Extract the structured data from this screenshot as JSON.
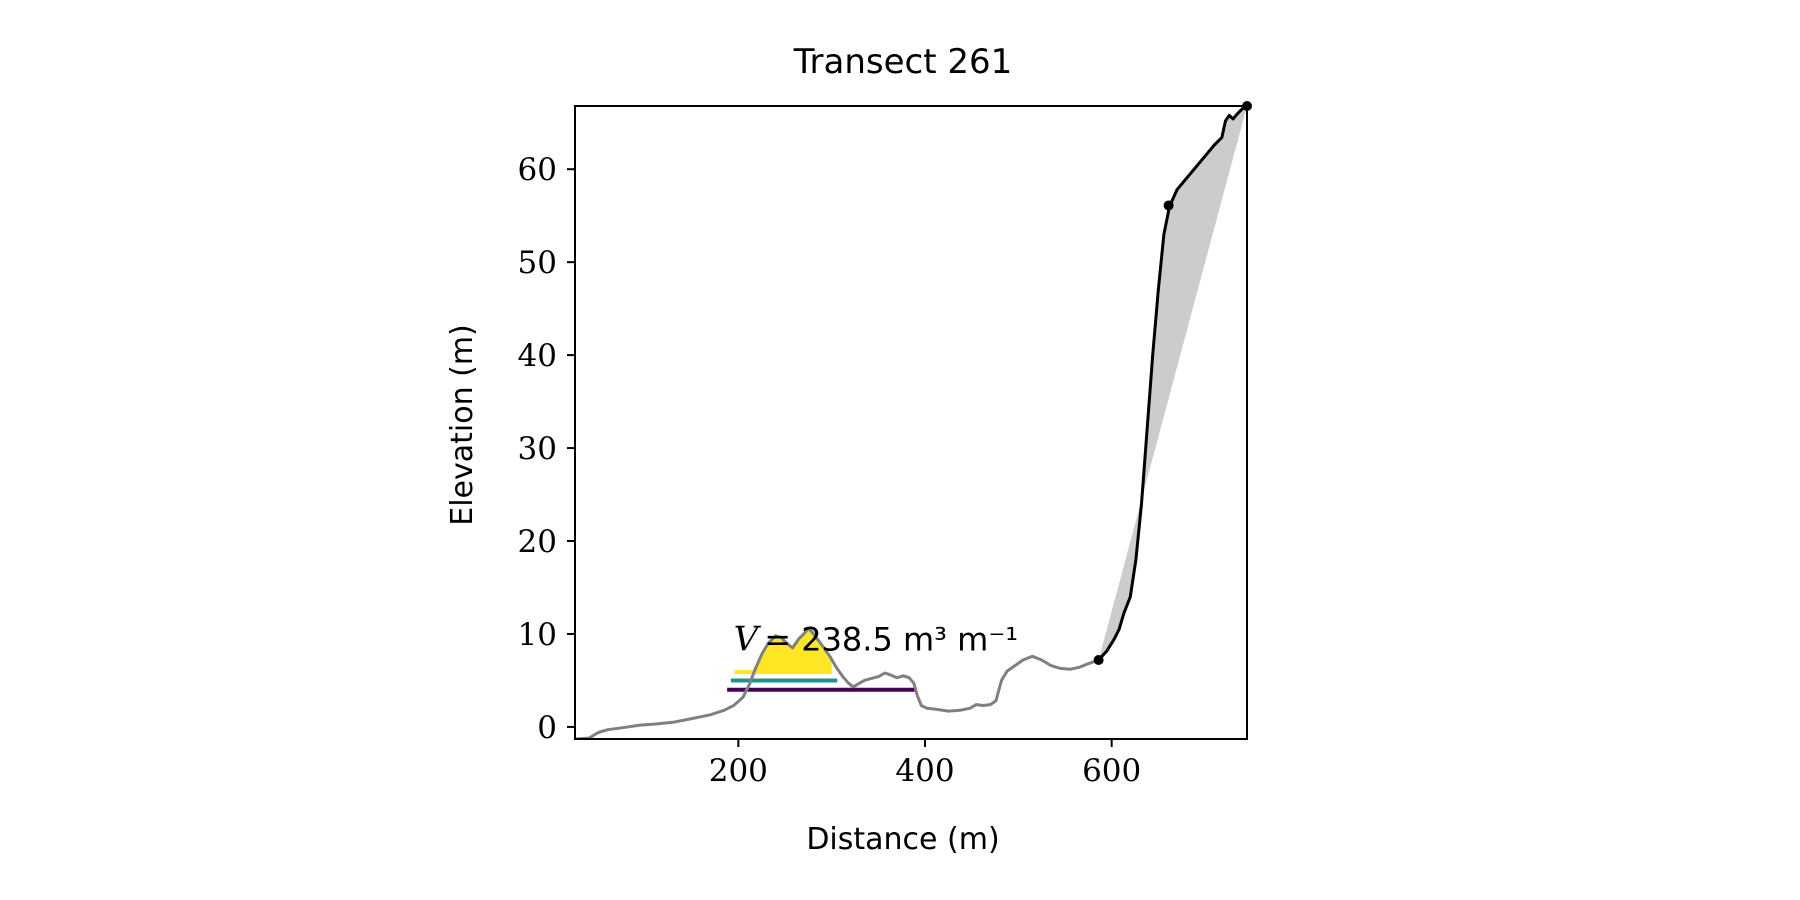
{
  "chart_data": {
    "type": "line",
    "title": "Transect 261",
    "xlabel": "Distance (m)",
    "ylabel": "Elevation (m)",
    "xlim": [
      25,
      745
    ],
    "ylim": [
      -1.3,
      66.8
    ],
    "xticks": [
      200,
      400,
      600
    ],
    "yticks": [
      0,
      10,
      20,
      30,
      40,
      50,
      60
    ],
    "grid": false,
    "legend": "none",
    "annotation": {
      "prefix": "V",
      "text": "= 238.5 m³ m⁻¹",
      "x": 195,
      "y": 8.2
    },
    "colors": {
      "profile": "#808080",
      "cliff": "#000000",
      "cliff_fill": "#cccccc",
      "dune_top": "#fde725",
      "dune_mid": "#21918c",
      "dune_base": "#440154"
    },
    "series": [
      {
        "role": "profile",
        "points": [
          [
            25,
            -1.3
          ],
          [
            40,
            -1.2
          ],
          [
            50,
            -0.6
          ],
          [
            60,
            -0.3
          ],
          [
            75,
            -0.1
          ],
          [
            95,
            0.2
          ],
          [
            110,
            0.3
          ],
          [
            130,
            0.5
          ],
          [
            150,
            0.9
          ],
          [
            170,
            1.3
          ],
          [
            185,
            1.8
          ],
          [
            195,
            2.3
          ],
          [
            205,
            3.2
          ],
          [
            212,
            4.6
          ],
          [
            218,
            6.2
          ],
          [
            225,
            7.8
          ],
          [
            232,
            9.0
          ],
          [
            240,
            9.8
          ],
          [
            246,
            9.6
          ],
          [
            252,
            9.0
          ],
          [
            258,
            8.5
          ],
          [
            265,
            9.5
          ],
          [
            270,
            10.0
          ],
          [
            275,
            10.6
          ],
          [
            279,
            10.2
          ],
          [
            285,
            9.4
          ],
          [
            291,
            8.6
          ],
          [
            298,
            7.6
          ],
          [
            305,
            6.4
          ],
          [
            312,
            5.4
          ],
          [
            318,
            4.7
          ],
          [
            323,
            4.3
          ],
          [
            328,
            4.6
          ],
          [
            335,
            5.0
          ],
          [
            342,
            5.2
          ],
          [
            350,
            5.4
          ],
          [
            357,
            5.8
          ],
          [
            363,
            5.6
          ],
          [
            370,
            5.3
          ],
          [
            377,
            5.5
          ],
          [
            383,
            5.3
          ],
          [
            388,
            4.7
          ],
          [
            392,
            3.3
          ],
          [
            396,
            2.3
          ],
          [
            402,
            2.0
          ],
          [
            412,
            1.9
          ],
          [
            425,
            1.7
          ],
          [
            438,
            1.8
          ],
          [
            448,
            2.0
          ],
          [
            455,
            2.4
          ],
          [
            462,
            2.3
          ],
          [
            470,
            2.4
          ],
          [
            476,
            2.8
          ],
          [
            482,
            5.0
          ],
          [
            488,
            6.0
          ],
          [
            495,
            6.5
          ],
          [
            505,
            7.2
          ],
          [
            515,
            7.6
          ],
          [
            525,
            7.2
          ],
          [
            535,
            6.6
          ],
          [
            545,
            6.3
          ],
          [
            555,
            6.2
          ],
          [
            565,
            6.4
          ],
          [
            575,
            6.8
          ],
          [
            586,
            7.2
          ]
        ]
      },
      {
        "role": "cliff",
        "points": [
          [
            586,
            7.2
          ],
          [
            595,
            8.2
          ],
          [
            603,
            9.5
          ],
          [
            608,
            10.5
          ],
          [
            613,
            12.2
          ],
          [
            620,
            14.0
          ],
          [
            626,
            18.0
          ],
          [
            632,
            24.0
          ],
          [
            638,
            32.0
          ],
          [
            644,
            40.0
          ],
          [
            650,
            47.0
          ],
          [
            656,
            53.0
          ],
          [
            662,
            56.0
          ],
          [
            670,
            57.8
          ],
          [
            680,
            59.0
          ],
          [
            690,
            60.2
          ],
          [
            700,
            61.4
          ],
          [
            710,
            62.6
          ],
          [
            718,
            63.4
          ],
          [
            722,
            65.2
          ],
          [
            726,
            65.8
          ],
          [
            730,
            65.4
          ],
          [
            735,
            66.0
          ],
          [
            740,
            66.5
          ],
          [
            745,
            66.8
          ]
        ]
      }
    ],
    "cliff_fill_polygon": [
      [
        586,
        7.2
      ],
      [
        745,
        66.8
      ],
      [
        740,
        66.5
      ],
      [
        735,
        66.0
      ],
      [
        730,
        65.4
      ],
      [
        726,
        65.8
      ],
      [
        722,
        65.2
      ],
      [
        718,
        63.4
      ],
      [
        710,
        62.6
      ],
      [
        700,
        61.4
      ],
      [
        690,
        60.2
      ],
      [
        680,
        59.0
      ],
      [
        670,
        57.8
      ],
      [
        662,
        56.0
      ],
      [
        656,
        53.0
      ],
      [
        650,
        47.0
      ],
      [
        644,
        40.0
      ],
      [
        638,
        32.0
      ],
      [
        632,
        24.0
      ],
      [
        626,
        18.0
      ],
      [
        620,
        14.0
      ],
      [
        613,
        12.2
      ],
      [
        608,
        10.5
      ],
      [
        603,
        9.5
      ],
      [
        595,
        8.2
      ]
    ],
    "markers": [
      [
        586,
        7.2
      ],
      [
        661,
        56.1
      ],
      [
        745,
        66.8
      ]
    ],
    "dune_layers": [
      {
        "role": "base",
        "level": 4.0,
        "x": [
          188,
          390
        ]
      },
      {
        "role": "mid",
        "level": 5.0,
        "x": [
          192,
          306
        ]
      },
      {
        "role": "top",
        "level": 5.9,
        "x": [
          196,
          300
        ]
      }
    ]
  }
}
